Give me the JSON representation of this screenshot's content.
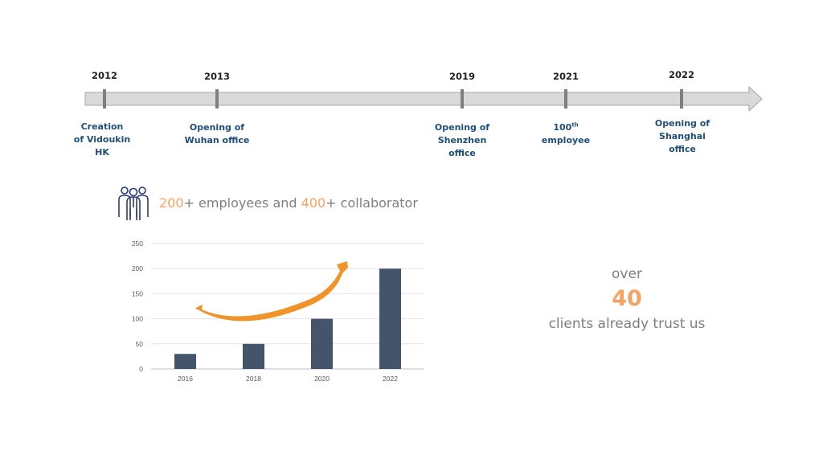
{
  "timeline": {
    "events": [
      {
        "year": "2012",
        "label_lines": [
          "Creation",
          "of Vidoukin",
          "HK"
        ]
      },
      {
        "year": "2013",
        "label_lines": [
          "Opening of",
          "Wuhan office"
        ]
      },
      {
        "year": "2019",
        "label_lines": [
          "Opening of",
          "Shenzhen",
          "office"
        ]
      },
      {
        "year": "2021",
        "label_main": "100",
        "label_sup": "th",
        "label_line2": "employee"
      },
      {
        "year": "2022",
        "label_lines": [
          "Opening of",
          "Shanghai",
          "office"
        ]
      }
    ]
  },
  "headline": {
    "employees_count": "200",
    "employees_text": "+ employees and ",
    "collaborator_count": "400",
    "collaborator_text": "+ collaborator",
    "icon": "people-group-icon"
  },
  "chart_data": {
    "type": "bar",
    "categories": [
      "2016",
      "2018",
      "2020",
      "2022"
    ],
    "values": [
      30,
      50,
      100,
      200
    ],
    "ylim": [
      0,
      250
    ],
    "yticks": [
      0,
      50,
      100,
      150,
      200,
      250
    ],
    "bar_color": "#44546a",
    "grid": true,
    "annotation": "orange-growth-arrow"
  },
  "clients": {
    "over": "over",
    "count": "40",
    "text": "clients already trust us"
  },
  "colors": {
    "accent_orange": "#f4a261",
    "navy_text": "#1f4e79",
    "bar": "#44546a",
    "grey_text": "#7f7f7f"
  }
}
